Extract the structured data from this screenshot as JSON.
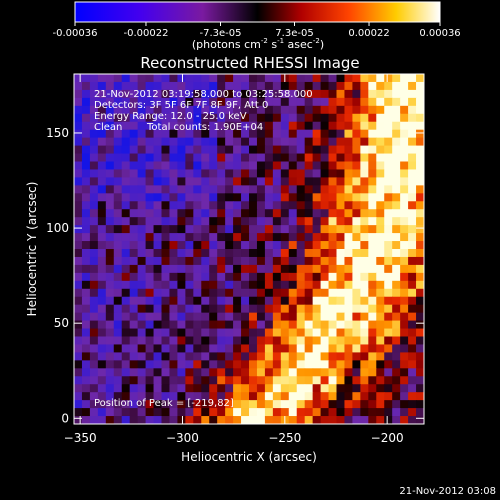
{
  "colorbar": {
    "ticks": [
      "-0.00036",
      "-0.00022",
      "-7.3e-05",
      "7.3e-05",
      "0.00022",
      "0.00036"
    ],
    "tick_values": [
      -0.00036,
      -0.00022,
      -7.3e-05,
      7.3e-05,
      0.00022,
      0.00036
    ],
    "range": [
      -0.00036,
      0.00036
    ],
    "units_main": "(photons cm",
    "units_sup1": "-2",
    "units_mid": " s",
    "units_sup2": "-1",
    "units_mid2": " asec",
    "units_sup3": "-2",
    "units_end": ")"
  },
  "chart_data": {
    "type": "heatmap",
    "title": "Reconstructed RHESSI Image",
    "xlabel": "Heliocentric X (arcsec)",
    "ylabel": "Heliocentric Y (arcsec)",
    "xlim": [
      -353,
      -182
    ],
    "ylim": [
      -3,
      181
    ],
    "x_ticks": [
      -350,
      -300,
      -250,
      -200
    ],
    "x_tick_labels": [
      "−350",
      "−300",
      "−250",
      "−200"
    ],
    "y_ticks": [
      0,
      50,
      100,
      150
    ],
    "y_tick_labels": [
      "0",
      "50",
      "100",
      "150"
    ],
    "colormap": "rhessi-blue-purple-red-yellow-white",
    "grid": false,
    "annotations": {
      "time_range": "21-Nov-2012 03:19:58.000 to 03:25:58.000",
      "detectors": "Detectors: 3F 5F 6F 7F 8F 9F, Att 0",
      "energy_range": "Energy Range: 12.0 - 25.0 keV",
      "method": "Clean",
      "total_counts": "Total counts: 1.90E+04",
      "peak_position": "Position of Peak = [-219,82]"
    }
  },
  "footer": {
    "timestamp": "21-Nov-2012 03:08"
  }
}
